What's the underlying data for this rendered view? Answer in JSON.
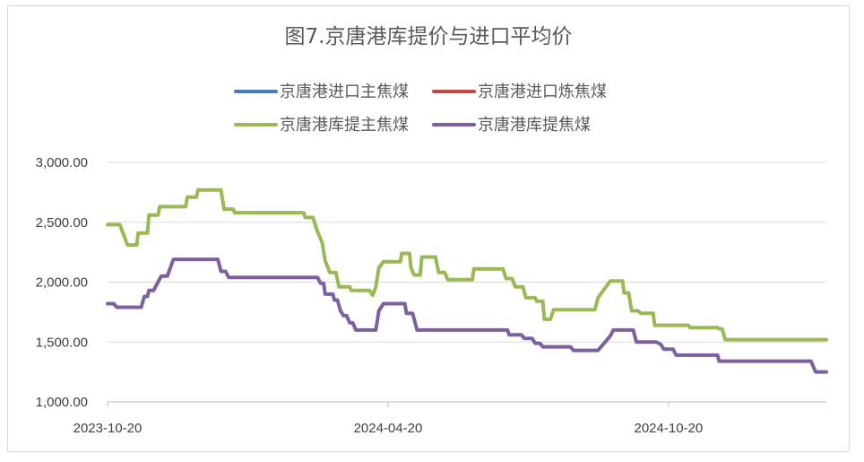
{
  "chart_data": {
    "type": "line",
    "title": "图7.京唐港库提价与进口平均价",
    "xlabel": "",
    "ylabel": "",
    "ylim": [
      1000,
      3000
    ],
    "yticks": [
      "3,000.00",
      "2,500.00",
      "2,000.00",
      "1,500.00",
      "1,000.00"
    ],
    "ytick_values": [
      3000,
      2500,
      2000,
      1500,
      1000
    ],
    "xticks": [
      "2023-10-20",
      "2024-04-20",
      "2024-10-20"
    ],
    "xtick_values": [
      "2023-10-20",
      "2024-04-20",
      "2024-10-20"
    ],
    "xlim": [
      "2023-10-20",
      "2025-01-31"
    ],
    "grid": "horizontal",
    "legend_position": "top",
    "legend": [
      {
        "name": "京唐港进口主焦煤",
        "color": "#4a7ebb"
      },
      {
        "name": "京唐港进口炼焦煤",
        "color": "#be4b48"
      },
      {
        "name": "京唐港库提主焦煤",
        "color": "#98b954"
      },
      {
        "name": "京唐港库提焦煤",
        "color": "#7d60a0"
      }
    ],
    "series": [
      {
        "name": "京唐港库提主焦煤",
        "color": "#98b954",
        "points": [
          [
            "2023-10-20",
            2480
          ],
          [
            "2023-10-28",
            2480
          ],
          [
            "2023-11-02",
            2310
          ],
          [
            "2023-11-08",
            2310
          ],
          [
            "2023-11-09",
            2410
          ],
          [
            "2023-11-15",
            2410
          ],
          [
            "2023-11-16",
            2560
          ],
          [
            "2023-11-22",
            2560
          ],
          [
            "2023-11-23",
            2630
          ],
          [
            "2023-12-10",
            2630
          ],
          [
            "2023-12-11",
            2710
          ],
          [
            "2023-12-17",
            2710
          ],
          [
            "2023-12-18",
            2770
          ],
          [
            "2024-01-02",
            2770
          ],
          [
            "2024-01-04",
            2610
          ],
          [
            "2024-01-10",
            2610
          ],
          [
            "2024-01-11",
            2580
          ],
          [
            "2024-02-25",
            2580
          ],
          [
            "2024-02-26",
            2540
          ],
          [
            "2024-03-02",
            2540
          ],
          [
            "2024-03-05",
            2420
          ],
          [
            "2024-03-08",
            2330
          ],
          [
            "2024-03-10",
            2180
          ],
          [
            "2024-03-13",
            2080
          ],
          [
            "2024-03-17",
            2080
          ],
          [
            "2024-03-19",
            1960
          ],
          [
            "2024-03-26",
            1960
          ],
          [
            "2024-03-27",
            1930
          ],
          [
            "2024-04-08",
            1930
          ],
          [
            "2024-04-10",
            1890
          ],
          [
            "2024-04-12",
            1960
          ],
          [
            "2024-04-14",
            2120
          ],
          [
            "2024-04-17",
            2170
          ],
          [
            "2024-04-28",
            2170
          ],
          [
            "2024-04-29",
            2240
          ],
          [
            "2024-05-04",
            2240
          ],
          [
            "2024-05-05",
            2120
          ],
          [
            "2024-05-07",
            2060
          ],
          [
            "2024-05-11",
            2060
          ],
          [
            "2024-05-12",
            2210
          ],
          [
            "2024-05-21",
            2210
          ],
          [
            "2024-05-23",
            2080
          ],
          [
            "2024-05-27",
            2080
          ],
          [
            "2024-05-29",
            2020
          ],
          [
            "2024-06-14",
            2020
          ],
          [
            "2024-06-15",
            2110
          ],
          [
            "2024-07-04",
            2110
          ],
          [
            "2024-07-06",
            2030
          ],
          [
            "2024-07-10",
            2030
          ],
          [
            "2024-07-12",
            1960
          ],
          [
            "2024-07-17",
            1960
          ],
          [
            "2024-07-19",
            1870
          ],
          [
            "2024-07-25",
            1870
          ],
          [
            "2024-07-26",
            1840
          ],
          [
            "2024-07-30",
            1840
          ],
          [
            "2024-07-31",
            1690
          ],
          [
            "2024-08-04",
            1690
          ],
          [
            "2024-08-06",
            1770
          ],
          [
            "2024-09-02",
            1770
          ],
          [
            "2024-09-04",
            1870
          ],
          [
            "2024-09-12",
            2010
          ],
          [
            "2024-09-20",
            2010
          ],
          [
            "2024-09-21",
            1910
          ],
          [
            "2024-09-24",
            1910
          ],
          [
            "2024-09-26",
            1760
          ],
          [
            "2024-09-30",
            1760
          ],
          [
            "2024-10-02",
            1740
          ],
          [
            "2024-10-10",
            1740
          ],
          [
            "2024-10-11",
            1640
          ],
          [
            "2024-11-02",
            1640
          ],
          [
            "2024-11-03",
            1620
          ],
          [
            "2024-11-21",
            1620
          ],
          [
            "2024-11-22",
            1610
          ],
          [
            "2024-11-24",
            1610
          ],
          [
            "2024-11-26",
            1520
          ],
          [
            "2025-01-31",
            1520
          ]
        ]
      },
      {
        "name": "京唐港库提焦煤",
        "color": "#7d60a0",
        "points": [
          [
            "2023-10-20",
            1820
          ],
          [
            "2023-10-24",
            1820
          ],
          [
            "2023-10-26",
            1790
          ],
          [
            "2023-11-11",
            1790
          ],
          [
            "2023-11-13",
            1880
          ],
          [
            "2023-11-15",
            1880
          ],
          [
            "2023-11-16",
            1930
          ],
          [
            "2023-11-19",
            1930
          ],
          [
            "2023-11-24",
            2050
          ],
          [
            "2023-11-28",
            2050
          ],
          [
            "2023-12-02",
            2190
          ],
          [
            "2023-12-31",
            2190
          ],
          [
            "2024-01-02",
            2090
          ],
          [
            "2024-01-05",
            2090
          ],
          [
            "2024-01-07",
            2040
          ],
          [
            "2024-03-05",
            2040
          ],
          [
            "2024-03-07",
            1990
          ],
          [
            "2024-03-09",
            1990
          ],
          [
            "2024-03-10",
            1900
          ],
          [
            "2024-03-15",
            1900
          ],
          [
            "2024-03-16",
            1850
          ],
          [
            "2024-03-18",
            1850
          ],
          [
            "2024-03-20",
            1760
          ],
          [
            "2024-03-22",
            1720
          ],
          [
            "2024-03-24",
            1720
          ],
          [
            "2024-03-26",
            1660
          ],
          [
            "2024-03-28",
            1660
          ],
          [
            "2024-03-30",
            1600
          ],
          [
            "2024-04-12",
            1600
          ],
          [
            "2024-04-14",
            1760
          ],
          [
            "2024-04-17",
            1820
          ],
          [
            "2024-05-01",
            1820
          ],
          [
            "2024-05-02",
            1740
          ],
          [
            "2024-05-06",
            1740
          ],
          [
            "2024-05-09",
            1600
          ],
          [
            "2024-07-07",
            1600
          ],
          [
            "2024-07-08",
            1560
          ],
          [
            "2024-07-16",
            1560
          ],
          [
            "2024-07-18",
            1530
          ],
          [
            "2024-07-23",
            1530
          ],
          [
            "2024-07-25",
            1490
          ],
          [
            "2024-07-28",
            1490
          ],
          [
            "2024-07-30",
            1460
          ],
          [
            "2024-08-17",
            1460
          ],
          [
            "2024-08-19",
            1430
          ],
          [
            "2024-09-04",
            1430
          ],
          [
            "2024-09-12",
            1550
          ],
          [
            "2024-09-14",
            1600
          ],
          [
            "2024-09-27",
            1600
          ],
          [
            "2024-09-29",
            1500
          ],
          [
            "2024-10-12",
            1500
          ],
          [
            "2024-10-15",
            1480
          ],
          [
            "2024-10-17",
            1440
          ],
          [
            "2024-10-23",
            1440
          ],
          [
            "2024-10-25",
            1390
          ],
          [
            "2024-11-21",
            1390
          ],
          [
            "2024-11-22",
            1340
          ],
          [
            "2025-01-21",
            1340
          ],
          [
            "2025-01-24",
            1250
          ],
          [
            "2025-01-31",
            1250
          ]
        ]
      }
    ]
  }
}
